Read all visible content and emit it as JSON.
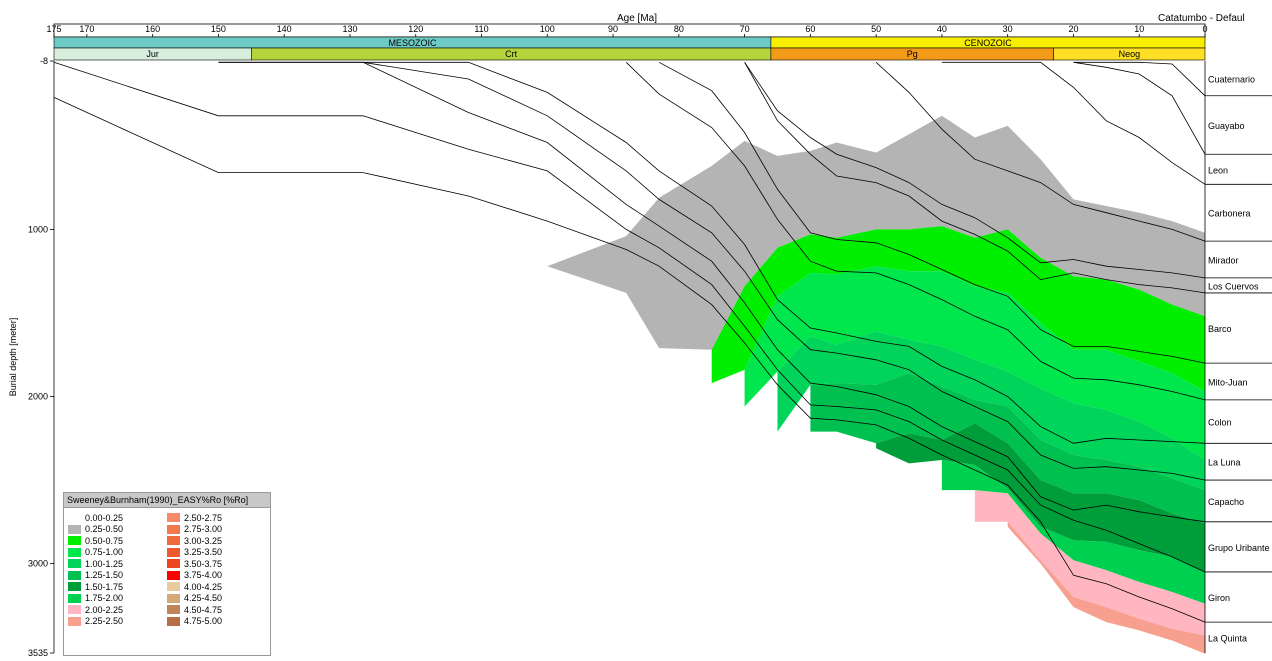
{
  "chart_data": {
    "type": "area",
    "title": "Catatumbo - Defaul",
    "xlabel": "Age [Ma]",
    "ylabel": "Burial depth [meter]",
    "xlim": [
      175,
      0
    ],
    "ylim": [
      -8,
      3535
    ],
    "x_ticks": [
      175,
      170,
      160,
      150,
      140,
      130,
      120,
      110,
      100,
      90,
      80,
      70,
      60,
      50,
      40,
      30,
      20,
      10,
      0
    ],
    "y_ticks": [
      {
        "value": -8,
        "label": "-8"
      },
      {
        "value": 1000,
        "label": "1000"
      },
      {
        "value": 2000,
        "label": "2000"
      },
      {
        "value": 3000,
        "label": "3000"
      },
      {
        "value": 3535,
        "label": "3535"
      }
    ],
    "eras": [
      {
        "name": "MESOZOIC",
        "start": 175,
        "end": 66,
        "color": "#6ecac4"
      },
      {
        "name": "CENOZOIC",
        "start": 66,
        "end": 0,
        "color": "#f7ee00"
      }
    ],
    "periods": [
      {
        "name": "Jur",
        "start": 175,
        "end": 145,
        "color": "#d8eedc"
      },
      {
        "name": "Crt",
        "start": 145,
        "end": 66,
        "color": "#b5d33a"
      },
      {
        "name": "Pg",
        "start": 66,
        "end": 23,
        "color": "#f39a18"
      },
      {
        "name": "Neog",
        "start": 23,
        "end": 0,
        "color": "#fde025"
      }
    ],
    "formations": [
      {
        "name": "Cuaternario",
        "bottom": 200
      },
      {
        "name": "Guayabo",
        "bottom": 550
      },
      {
        "name": "Leon",
        "bottom": 730
      },
      {
        "name": "Carbonera",
        "bottom": 1070
      },
      {
        "name": "Mirador",
        "bottom": 1290
      },
      {
        "name": "Los Cuervos",
        "bottom": 1380
      },
      {
        "name": "Barco",
        "bottom": 1800
      },
      {
        "name": "Mito-Juan",
        "bottom": 2020
      },
      {
        "name": "Colon",
        "bottom": 2280
      },
      {
        "name": "La Luna",
        "bottom": 2500
      },
      {
        "name": "Capacho",
        "bottom": 2750
      },
      {
        "name": "Grupo Uribante",
        "bottom": 3050
      },
      {
        "name": "Giron",
        "bottom": 3350
      },
      {
        "name": "La Quinta",
        "bottom": 3535
      }
    ],
    "age_points": [
      175,
      150,
      128,
      112,
      100,
      88,
      83,
      75,
      70,
      65,
      60,
      56,
      50,
      45,
      40,
      35,
      30,
      25,
      20,
      15,
      10,
      5,
      0
    ],
    "base_surface": [
      null,
      null,
      null,
      null,
      1220,
      1380,
      1710,
      1920,
      2060,
      2210,
      2210,
      2210,
      2310,
      2400,
      2560,
      2750,
      2780,
      3000,
      3260,
      3350,
      3400,
      3460,
      3540
    ],
    "maturity_zones": [
      {
        "range": "0.25-0.50",
        "color": "#b4b4b4",
        "top": [
          null,
          null,
          null,
          null,
          1220,
          1040,
          810,
          620,
          470,
          560,
          530,
          480,
          540,
          430,
          320,
          450,
          380,
          580,
          820,
          860,
          900,
          950,
          1020
        ]
      },
      {
        "range": "0.50-0.75",
        "color": "#00ee00",
        "top": [
          null,
          null,
          null,
          null,
          null,
          null,
          null,
          1720,
          1340,
          1110,
          1030,
          1050,
          1000,
          1000,
          980,
          1050,
          1000,
          1170,
          1280,
          1300,
          1360,
          1450,
          1520
        ]
      },
      {
        "range": "0.75-1.00",
        "color": "#00e64d",
        "top": [
          null,
          null,
          null,
          null,
          null,
          null,
          null,
          null,
          1840,
          1400,
          1260,
          1270,
          1220,
          1250,
          1250,
          1340,
          1380,
          1560,
          1720,
          1720,
          1790,
          1860,
          1970
        ]
      },
      {
        "range": "1.00-1.25",
        "color": "#00d45a",
        "top": [
          null,
          null,
          null,
          null,
          null,
          null,
          null,
          null,
          null,
          1850,
          1640,
          1690,
          1610,
          1660,
          1700,
          1780,
          1850,
          1950,
          2040,
          2080,
          2150,
          2250,
          2380
        ]
      },
      {
        "range": "1.25-1.50",
        "color": "#00c050",
        "top": [
          null,
          null,
          null,
          null,
          null,
          null,
          null,
          null,
          null,
          null,
          1930,
          1920,
          1930,
          1860,
          1940,
          2020,
          2060,
          2260,
          2350,
          2380,
          2420,
          2490,
          2560
        ]
      },
      {
        "range": "1.50-1.75",
        "color": "#009e3a",
        "top": [
          null,
          null,
          null,
          null,
          null,
          null,
          null,
          null,
          null,
          null,
          null,
          null,
          2280,
          2220,
          2260,
          2160,
          2280,
          2500,
          2580,
          2580,
          2620,
          2700,
          2760
        ]
      },
      {
        "range": "1.75-2.00",
        "color": "#00d050",
        "top": [
          null,
          null,
          null,
          null,
          null,
          null,
          null,
          null,
          null,
          null,
          null,
          null,
          null,
          null,
          2380,
          2410,
          2550,
          2780,
          2860,
          2870,
          2920,
          2960,
          3050
        ]
      },
      {
        "range": "2.00-2.25",
        "color": "#ffb6c1",
        "top": [
          null,
          null,
          null,
          null,
          null,
          null,
          null,
          null,
          null,
          null,
          null,
          null,
          null,
          null,
          null,
          2560,
          2580,
          2820,
          2980,
          3040,
          3110,
          3170,
          3240
        ]
      },
      {
        "range": "2.25-2.50",
        "color": "#f7a090",
        "top": [
          null,
          null,
          null,
          null,
          null,
          null,
          null,
          null,
          null,
          null,
          null,
          null,
          null,
          null,
          null,
          null,
          2750,
          2980,
          3200,
          3260,
          3330,
          3390,
          3430
        ]
      }
    ],
    "horizon_lines": [
      [
        null,
        null,
        null,
        null,
        null,
        null,
        null,
        null,
        null,
        null,
        null,
        null,
        null,
        null,
        null,
        null,
        null,
        null,
        0,
        0,
        0,
        10,
        200
      ],
      [
        null,
        null,
        null,
        null,
        null,
        null,
        null,
        null,
        null,
        null,
        null,
        null,
        null,
        null,
        null,
        null,
        null,
        null,
        0,
        30,
        70,
        200,
        550
      ],
      [
        null,
        null,
        null,
        null,
        null,
        null,
        null,
        null,
        null,
        null,
        null,
        null,
        null,
        null,
        0,
        0,
        0,
        0,
        150,
        350,
        450,
        600,
        730
      ],
      [
        null,
        null,
        null,
        null,
        null,
        null,
        null,
        null,
        null,
        null,
        null,
        null,
        0,
        180,
        400,
        580,
        650,
        720,
        850,
        900,
        950,
        1000,
        1070
      ],
      [
        null,
        null,
        null,
        null,
        null,
        null,
        null,
        null,
        0,
        290,
        450,
        550,
        630,
        720,
        850,
        930,
        1050,
        1200,
        1180,
        1220,
        1240,
        1260,
        1290
      ],
      [
        null,
        null,
        null,
        null,
        null,
        null,
        null,
        null,
        0,
        350,
        550,
        680,
        720,
        800,
        950,
        1030,
        1130,
        1300,
        1260,
        1300,
        1330,
        1350,
        1380
      ],
      [
        null,
        null,
        null,
        null,
        null,
        null,
        0,
        170,
        420,
        760,
        1020,
        1060,
        1080,
        1150,
        1240,
        1330,
        1400,
        1600,
        1700,
        1700,
        1730,
        1760,
        1800
      ],
      [
        null,
        null,
        null,
        null,
        null,
        0,
        190,
        390,
        620,
        940,
        1190,
        1250,
        1260,
        1330,
        1420,
        1520,
        1600,
        1790,
        1890,
        1900,
        1930,
        1970,
        2020
      ],
      [
        null,
        null,
        0,
        0,
        180,
        480,
        650,
        860,
        1090,
        1420,
        1590,
        1620,
        1670,
        1700,
        1820,
        1900,
        2000,
        2180,
        2280,
        2250,
        2260,
        2270,
        2280
      ],
      [
        null,
        0,
        0,
        100,
        320,
        650,
        820,
        1020,
        1250,
        1540,
        1720,
        1740,
        1780,
        1840,
        1970,
        2060,
        2150,
        2350,
        2430,
        2420,
        2440,
        2460,
        2500
      ],
      [
        null,
        0,
        0,
        300,
        480,
        850,
        980,
        1190,
        1440,
        1720,
        1920,
        1940,
        1990,
        2060,
        2180,
        2270,
        2360,
        2600,
        2680,
        2650,
        2690,
        2720,
        2750
      ],
      [
        0,
        320,
        320,
        520,
        650,
        1000,
        1110,
        1330,
        1580,
        1840,
        2050,
        2060,
        2080,
        2150,
        2260,
        2350,
        2440,
        2650,
        2740,
        2800,
        2880,
        2960,
        3050
      ],
      [
        210,
        660,
        660,
        800,
        950,
        1120,
        1220,
        1450,
        1680,
        1930,
        2130,
        2140,
        2170,
        2250,
        2350,
        2440,
        2530,
        2750,
        3070,
        3120,
        3200,
        3270,
        3350
      ]
    ],
    "legend": {
      "title": "Sweeney&Burnham(1990)_EASY%Ro [%Ro]",
      "items": [
        {
          "label": "0.00-0.25",
          "color": "#ffffff"
        },
        {
          "label": "0.25-0.50",
          "color": "#b4b4b4"
        },
        {
          "label": "0.50-0.75",
          "color": "#00ee00"
        },
        {
          "label": "0.75-1.00",
          "color": "#00e64d"
        },
        {
          "label": "1.00-1.25",
          "color": "#00d45a"
        },
        {
          "label": "1.25-1.50",
          "color": "#00c050"
        },
        {
          "label": "1.50-1.75",
          "color": "#009e3a"
        },
        {
          "label": "1.75-2.00",
          "color": "#00d050"
        },
        {
          "label": "2.00-2.25",
          "color": "#ffb6c1"
        },
        {
          "label": "2.25-2.50",
          "color": "#f7a090"
        },
        {
          "label": "2.50-2.75",
          "color": "#f78a6a"
        },
        {
          "label": "2.75-3.00",
          "color": "#f2784e"
        },
        {
          "label": "3.00-3.25",
          "color": "#f06a3c"
        },
        {
          "label": "3.25-3.50",
          "color": "#ee5a2e"
        },
        {
          "label": "3.50-3.75",
          "color": "#ec4520"
        },
        {
          "label": "3.75-4.00",
          "color": "#ff0000"
        },
        {
          "label": "4.00-4.25",
          "color": "#e8cca0"
        },
        {
          "label": "4.25-4.50",
          "color": "#d4a878"
        },
        {
          "label": "4.50-4.75",
          "color": "#c08458"
        },
        {
          "label": "4.75-5.00",
          "color": "#b86e48"
        }
      ]
    }
  }
}
